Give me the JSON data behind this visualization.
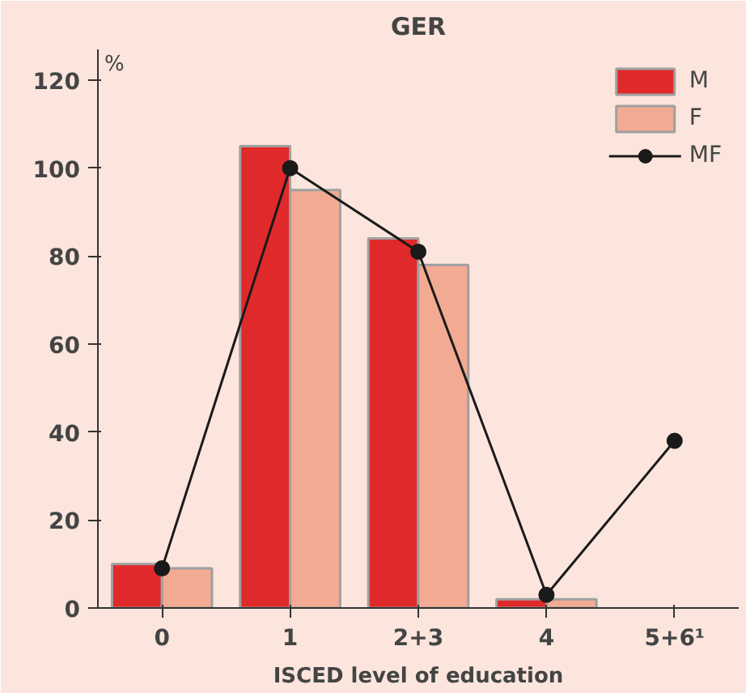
{
  "chart_data": {
    "type": "bar",
    "title": "GER",
    "ylabel": "%",
    "xlabel": "ISCED level of education",
    "categories": [
      "0",
      "1",
      "2+3",
      "4",
      "5+6¹"
    ],
    "series": [
      {
        "name": "M",
        "color": "#e0292a",
        "values": [
          10,
          105,
          84,
          2,
          null
        ]
      },
      {
        "name": "F",
        "color": "#f2ab92",
        "values": [
          9,
          95,
          78,
          2,
          null
        ]
      },
      {
        "name": "MF",
        "type": "line",
        "color": "#1a1a1a",
        "values": [
          9,
          100,
          81,
          3,
          38
        ]
      }
    ],
    "ylim": [
      0,
      127
    ],
    "yticks": [
      0,
      20,
      40,
      60,
      80,
      100,
      120
    ],
    "grid": false,
    "legend": "top right",
    "marker": "circle"
  }
}
